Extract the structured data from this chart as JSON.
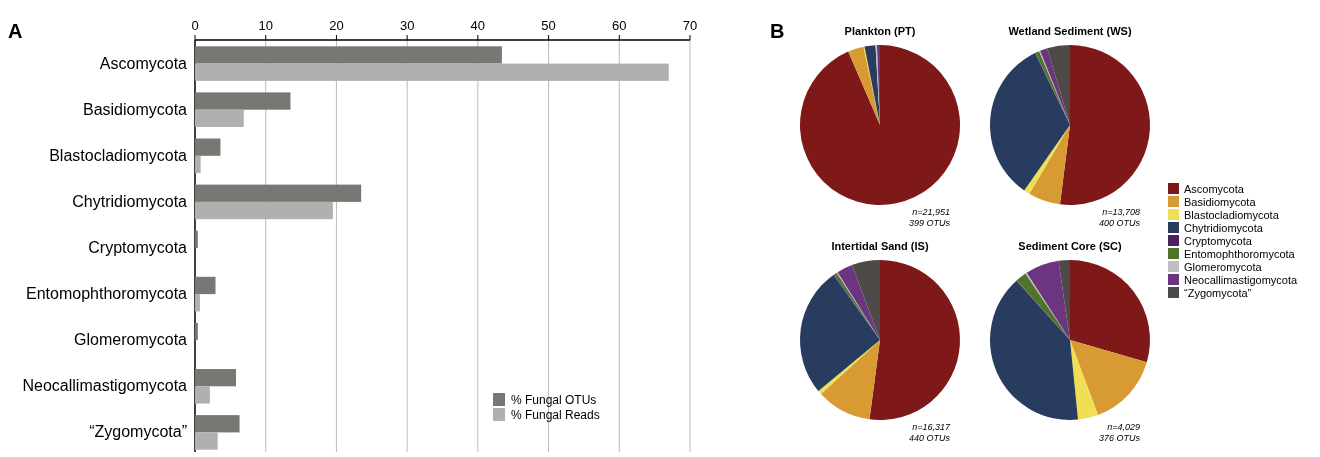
{
  "chart_data": [
    {
      "type": "bar",
      "orientation": "horizontal",
      "categories": [
        "Ascomycota",
        "Basidiomycota",
        "Blastocladiomycota",
        "Chytridiomycota",
        "Cryptomycota",
        "Entomophthoromycota",
        "Glomeromycota",
        "Neocallimastigomycota",
        "“Zygomycota”"
      ],
      "series": [
        {
          "name": "% Fungal OTUs",
          "color": "#777874",
          "values": [
            43.4,
            13.5,
            3.6,
            23.5,
            0.4,
            2.9,
            0.4,
            5.8,
            6.3
          ]
        },
        {
          "name": "% Fungal Reads",
          "color": "#b0b0af",
          "values": [
            67,
            6.9,
            0.8,
            19.5,
            0,
            0.7,
            0,
            2.1,
            3.2
          ]
        }
      ],
      "xlim": [
        0,
        70
      ],
      "xticks": [
        0,
        10,
        20,
        30,
        40,
        50,
        60,
        70
      ],
      "grid": "x",
      "legend": "bottom right",
      "annotations": [
        "A"
      ]
    },
    {
      "type": "pie",
      "title": "Plankton (PT)",
      "categories": [
        null,
        null,
        null,
        null,
        null,
        null,
        null,
        null,
        null
      ],
      "colors": [
        "#7f1819",
        "#d89b33",
        "#f0df55",
        "#283c5f",
        null,
        null,
        "#bfbfbf",
        "#6b3580",
        null
      ],
      "values": [
        93.5,
        3.2,
        0.2,
        2.2,
        0,
        0,
        0.3,
        0.6,
        0
      ],
      "annotations": [
        "B",
        "n=21,951",
        "399 OTUs"
      ]
    },
    {
      "type": "pie",
      "title": "Wetland Sediment (WS)",
      "categories": [
        "Ascomycota",
        "Basidiomycota",
        "Blastocladiomycota",
        "Chytridiomycota",
        "Cryptomycota",
        "Entomophthoromycota",
        "Glomeromycota",
        "Neocallimastigomycota",
        "“Zygomycota”"
      ],
      "colors": [
        "#7f1819",
        "#d89b33",
        "#f0df55",
        "#283c5f",
        "#4b2260",
        "#4f7328",
        "#bfbfbf",
        "#6b3580",
        "#4e4a47"
      ],
      "values": [
        52,
        6.5,
        1.2,
        33.1,
        0.1,
        0.8,
        0.2,
        1.5,
        4.6
      ],
      "annotations": [
        "n=13,708",
        "400 OTUs"
      ],
      "legend": "right"
    },
    {
      "type": "pie",
      "title": "Intertidal Sand (IS)",
      "categories": [
        null,
        null,
        null,
        null,
        null,
        null,
        null,
        null,
        null
      ],
      "colors": [
        "#7f1819",
        "#d89b33",
        "#f0df55",
        "#283c5f",
        "#4b2260",
        "#4f7328",
        "#bfbfbf",
        "#6b3580",
        "#4e4a47"
      ],
      "values": [
        52.1,
        11.1,
        0.8,
        26.1,
        0.2,
        0.6,
        0.2,
        3.2,
        5.7
      ],
      "annotations": [
        "n=16,317",
        "440 OTUs"
      ]
    },
    {
      "type": "pie",
      "title": "Sediment Core (SC)",
      "categories": [
        null,
        null,
        null,
        null,
        null,
        null,
        null,
        null,
        null
      ],
      "colors": [
        "#7f1819",
        "#d89b33",
        "#f0df55",
        "#283c5f",
        "#4b2260",
        "#4f7328",
        "#bfbfbf",
        "#6b3580",
        "#4e4a47"
      ],
      "values": [
        29.5,
        14.8,
        4.1,
        39.9,
        0.1,
        2.2,
        0.3,
        6.8,
        2.3
      ],
      "annotations": [
        "n=4,029",
        "376 OTUs"
      ]
    }
  ]
}
